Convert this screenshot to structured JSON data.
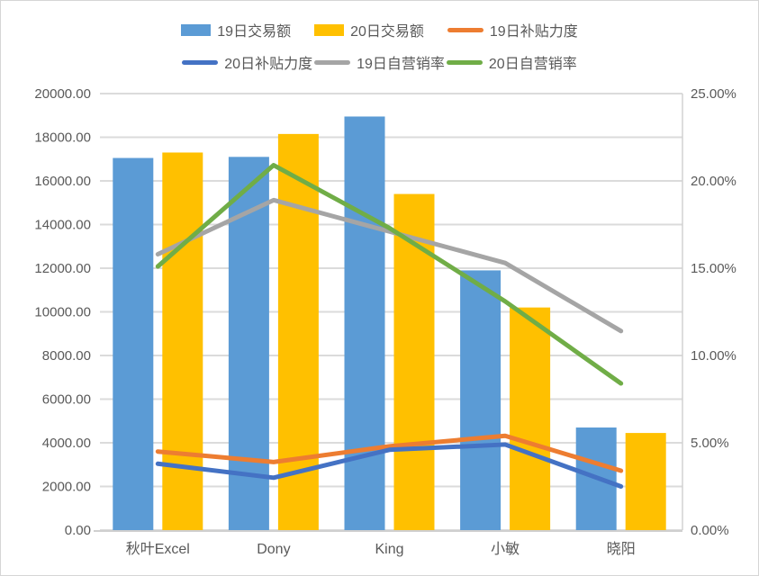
{
  "window": {
    "background": "#FFFFFF",
    "border_color": "#D6D6D6"
  },
  "chart_data": {
    "type": "combo: clustered bar + line, dual axis",
    "title": "",
    "categories": [
      "秋叶Excel",
      "Dony",
      "King",
      "小敏",
      "晓阳"
    ],
    "series": [
      {
        "name": "19日交易额",
        "type": "bar",
        "axis": "left",
        "color": "#5B9BD5",
        "values": [
          17050,
          17100,
          18950,
          11900,
          4700
        ]
      },
      {
        "name": "20日交易额",
        "type": "bar",
        "axis": "left",
        "color": "#FFC000",
        "values": [
          17300,
          18150,
          15400,
          10200,
          4450
        ]
      },
      {
        "name": "19日补贴力度",
        "type": "line",
        "axis": "right",
        "color": "#ED7D31",
        "values": [
          4.5,
          3.9,
          4.8,
          5.4,
          3.4
        ],
        "unit": "%"
      },
      {
        "name": "20日补贴力度",
        "type": "line",
        "axis": "right",
        "color": "#4472C4",
        "values": [
          3.8,
          3.0,
          4.6,
          4.9,
          2.5
        ],
        "unit": "%"
      },
      {
        "name": "19日自营销率",
        "type": "line",
        "axis": "right",
        "color": "#A5A5A5",
        "values": [
          15.8,
          18.9,
          17.1,
          15.3,
          11.4
        ],
        "unit": "%"
      },
      {
        "name": "20日自营销率",
        "type": "line",
        "axis": "right",
        "color": "#70AD47",
        "values": [
          15.1,
          20.9,
          17.3,
          13.1,
          8.4
        ],
        "unit": "%"
      }
    ],
    "left_axis": {
      "min": 0,
      "max": 20000,
      "step": 2000,
      "tick_labels": [
        "20000.00",
        "18000.00",
        "16000.00",
        "14000.00",
        "12000.00",
        "10000.00",
        "8000.00",
        "6000.00",
        "4000.00",
        "2000.00",
        "0.00"
      ]
    },
    "right_axis": {
      "min": 0,
      "max": 25,
      "step": 5,
      "tick_labels": [
        "25.00%",
        "20.00%",
        "15.00%",
        "10.00%",
        "5.00%",
        "0.00%"
      ]
    },
    "legend": {
      "position": "top",
      "rows": [
        [
          "19日交易额",
          "20日交易额",
          "19日补贴力度"
        ],
        [
          "20日补贴力度",
          "19日自营销率",
          "20日自营销率"
        ]
      ]
    },
    "grid": {
      "horizontal": true,
      "color": "#DBDBDB"
    },
    "text_color": "#595959"
  }
}
